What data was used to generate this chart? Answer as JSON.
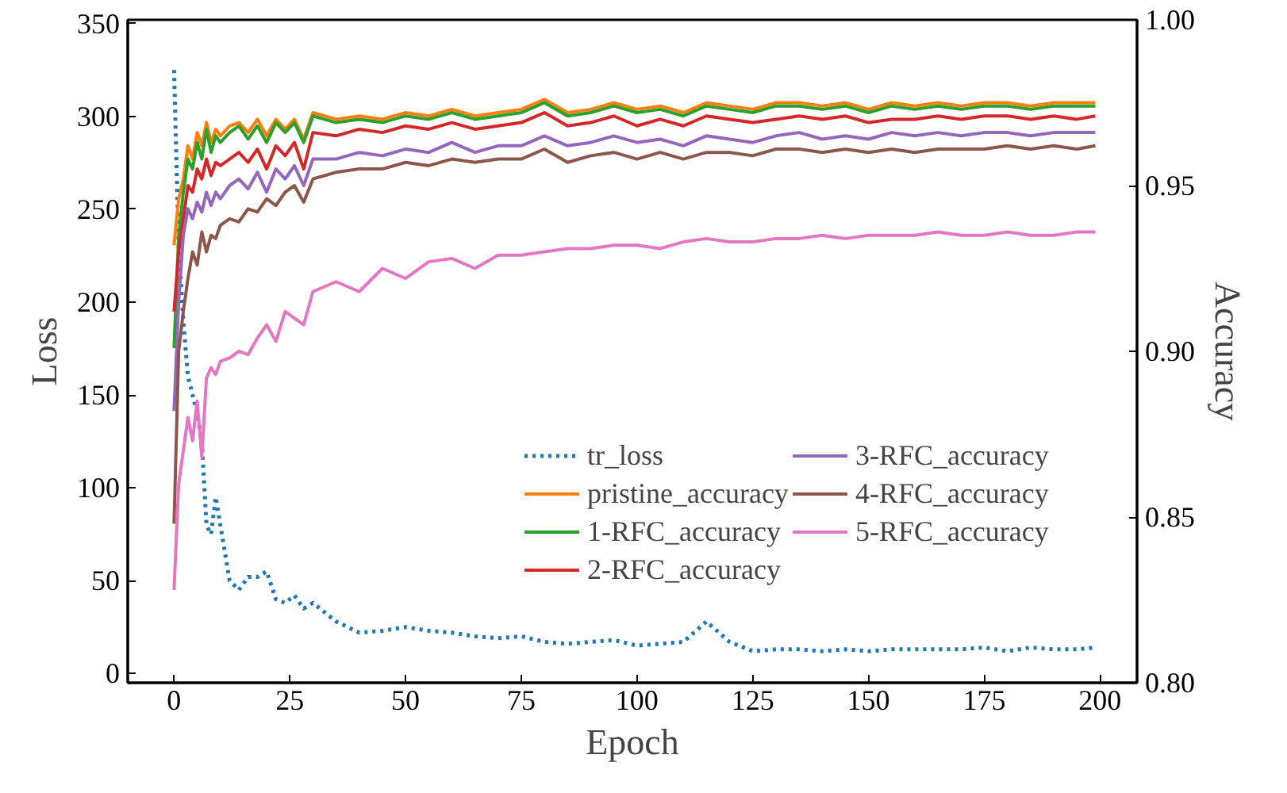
{
  "chart_data": {
    "type": "line",
    "xlabel": "Epoch",
    "ylabel": "Loss",
    "y2label": "Accuracy",
    "xlim": [
      -10,
      208
    ],
    "xticks": [
      0,
      25,
      50,
      75,
      100,
      125,
      150,
      175,
      200
    ],
    "ylim": [
      -5,
      352
    ],
    "yticks": [
      0,
      50,
      100,
      150,
      200,
      250,
      300,
      350
    ],
    "y2lim": [
      0.8,
      1.0
    ],
    "y2ticks": [
      {
        "value": 0.8,
        "label": "0.80"
      },
      {
        "value": 0.85,
        "label": "0.85"
      },
      {
        "value": 0.9,
        "label": "0.90"
      },
      {
        "value": 0.95,
        "label": "0.95"
      },
      {
        "value": 1.0,
        "label": "1.00"
      }
    ],
    "x": [
      0,
      1,
      2,
      3,
      4,
      5,
      6,
      7,
      8,
      9,
      10,
      12,
      14,
      16,
      18,
      20,
      22,
      24,
      26,
      28,
      30,
      35,
      40,
      45,
      50,
      55,
      60,
      65,
      70,
      75,
      80,
      85,
      90,
      95,
      100,
      105,
      110,
      115,
      120,
      125,
      130,
      135,
      140,
      145,
      150,
      155,
      160,
      165,
      170,
      175,
      180,
      185,
      190,
      195,
      199
    ],
    "grid": false,
    "legend": "right",
    "marker": "none",
    "series": [
      {
        "name": "tr_loss",
        "color": "#1f77b4",
        "line_style": "dotted",
        "values": [
          325,
          230,
          190,
          160,
          150,
          140,
          125,
          80,
          75,
          95,
          80,
          50,
          45,
          52,
          52,
          55,
          40,
          38,
          42,
          35,
          38,
          28,
          22,
          23,
          25,
          23,
          22,
          20,
          19,
          20,
          17,
          16,
          17,
          18,
          15,
          16,
          17,
          28,
          17,
          12,
          13,
          13,
          12,
          13,
          12,
          13,
          13,
          13,
          13,
          14,
          12,
          14,
          13,
          13,
          14
        ]
      },
      {
        "name": "pristine_accuracy",
        "color": "#ff7f0e",
        "axis": "y2",
        "line_style": "solid",
        "values": [
          0.932,
          0.946,
          0.952,
          0.962,
          0.958,
          0.966,
          0.962,
          0.969,
          0.963,
          0.967,
          0.965,
          0.968,
          0.969,
          0.966,
          0.97,
          0.965,
          0.97,
          0.967,
          0.97,
          0.964,
          0.972,
          0.97,
          0.971,
          0.97,
          0.972,
          0.971,
          0.973,
          0.971,
          0.972,
          0.973,
          0.976,
          0.972,
          0.973,
          0.975,
          0.973,
          0.974,
          0.972,
          0.975,
          0.974,
          0.973,
          0.975,
          0.975,
          0.974,
          0.975,
          0.973,
          0.975,
          0.974,
          0.975,
          0.974,
          0.975,
          0.975,
          0.974,
          0.975,
          0.975,
          0.975
        ]
      },
      {
        "name": "1-RFC_accuracy",
        "color": "#2ca02c",
        "axis": "y2",
        "line_style": "solid",
        "values": [
          0.901,
          0.935,
          0.948,
          0.958,
          0.955,
          0.963,
          0.958,
          0.967,
          0.96,
          0.965,
          0.963,
          0.966,
          0.968,
          0.964,
          0.968,
          0.963,
          0.969,
          0.966,
          0.969,
          0.963,
          0.971,
          0.969,
          0.97,
          0.969,
          0.971,
          0.97,
          0.972,
          0.97,
          0.971,
          0.972,
          0.975,
          0.971,
          0.972,
          0.974,
          0.972,
          0.973,
          0.971,
          0.974,
          0.973,
          0.972,
          0.974,
          0.974,
          0.973,
          0.974,
          0.972,
          0.974,
          0.973,
          0.974,
          0.973,
          0.974,
          0.974,
          0.973,
          0.974,
          0.974,
          0.974
        ]
      },
      {
        "name": "2-RFC_accuracy",
        "color": "#d62728",
        "axis": "y2",
        "line_style": "solid",
        "values": [
          0.912,
          0.93,
          0.94,
          0.95,
          0.948,
          0.955,
          0.952,
          0.958,
          0.953,
          0.957,
          0.956,
          0.958,
          0.96,
          0.957,
          0.961,
          0.955,
          0.962,
          0.959,
          0.963,
          0.955,
          0.966,
          0.965,
          0.967,
          0.966,
          0.968,
          0.967,
          0.969,
          0.967,
          0.968,
          0.969,
          0.972,
          0.968,
          0.969,
          0.971,
          0.968,
          0.97,
          0.968,
          0.971,
          0.97,
          0.969,
          0.97,
          0.971,
          0.97,
          0.971,
          0.969,
          0.97,
          0.97,
          0.971,
          0.97,
          0.971,
          0.971,
          0.97,
          0.971,
          0.97,
          0.971
        ]
      },
      {
        "name": "3-RFC_accuracy",
        "color": "#9467bd",
        "axis": "y2",
        "line_style": "solid",
        "values": [
          0.882,
          0.915,
          0.935,
          0.943,
          0.94,
          0.945,
          0.942,
          0.948,
          0.944,
          0.948,
          0.946,
          0.95,
          0.952,
          0.949,
          0.954,
          0.948,
          0.955,
          0.952,
          0.956,
          0.95,
          0.958,
          0.958,
          0.96,
          0.959,
          0.961,
          0.96,
          0.963,
          0.96,
          0.962,
          0.962,
          0.965,
          0.962,
          0.963,
          0.965,
          0.963,
          0.964,
          0.962,
          0.965,
          0.964,
          0.963,
          0.965,
          0.966,
          0.964,
          0.965,
          0.964,
          0.966,
          0.965,
          0.966,
          0.965,
          0.966,
          0.966,
          0.965,
          0.966,
          0.966,
          0.966
        ]
      },
      {
        "name": "4-RFC_accuracy",
        "color": "#8c564b",
        "axis": "y2",
        "line_style": "solid",
        "values": [
          0.848,
          0.9,
          0.912,
          0.922,
          0.93,
          0.926,
          0.936,
          0.93,
          0.935,
          0.934,
          0.938,
          0.94,
          0.939,
          0.943,
          0.942,
          0.946,
          0.944,
          0.948,
          0.95,
          0.945,
          0.952,
          0.954,
          0.955,
          0.955,
          0.957,
          0.956,
          0.958,
          0.957,
          0.958,
          0.958,
          0.961,
          0.957,
          0.959,
          0.96,
          0.958,
          0.96,
          0.958,
          0.96,
          0.96,
          0.959,
          0.961,
          0.961,
          0.96,
          0.961,
          0.96,
          0.961,
          0.96,
          0.961,
          0.961,
          0.961,
          0.962,
          0.961,
          0.962,
          0.961,
          0.962
        ]
      },
      {
        "name": "5-RFC_accuracy",
        "color": "#e377c2",
        "axis": "y2",
        "line_style": "solid",
        "values": [
          0.828,
          0.86,
          0.87,
          0.88,
          0.873,
          0.885,
          0.868,
          0.892,
          0.895,
          0.893,
          0.897,
          0.898,
          0.9,
          0.899,
          0.904,
          0.908,
          0.903,
          0.912,
          0.91,
          0.908,
          0.918,
          0.921,
          0.918,
          0.925,
          0.922,
          0.927,
          0.928,
          0.925,
          0.929,
          0.929,
          0.93,
          0.931,
          0.931,
          0.932,
          0.932,
          0.931,
          0.933,
          0.934,
          0.933,
          0.933,
          0.934,
          0.934,
          0.935,
          0.934,
          0.935,
          0.935,
          0.935,
          0.936,
          0.935,
          0.935,
          0.936,
          0.935,
          0.935,
          0.936,
          0.936
        ]
      }
    ]
  }
}
